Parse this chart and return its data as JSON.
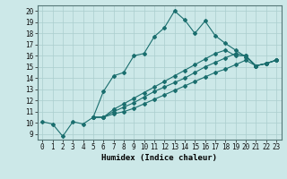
{
  "xlabel": "Humidex (Indice chaleur)",
  "bg_color": "#cce8e8",
  "line_color": "#1a6e6e",
  "grid_color": "#aacece",
  "xlim": [
    -0.5,
    23.5
  ],
  "ylim": [
    8.5,
    20.5
  ],
  "xticks": [
    0,
    1,
    2,
    3,
    4,
    5,
    6,
    7,
    8,
    9,
    10,
    11,
    12,
    13,
    14,
    15,
    16,
    17,
    18,
    19,
    20,
    21,
    22,
    23
  ],
  "yticks": [
    9,
    10,
    11,
    12,
    13,
    14,
    15,
    16,
    17,
    18,
    19,
    20
  ],
  "series": [
    {
      "x": [
        0,
        1,
        2,
        3,
        4,
        5,
        6,
        7,
        8,
        9,
        10,
        11,
        12,
        13,
        14,
        15,
        16,
        17,
        18,
        19,
        20,
        21,
        22,
        23
      ],
      "y": [
        10.1,
        9.9,
        8.8,
        10.1,
        9.9,
        10.5,
        12.8,
        14.2,
        14.5,
        16.0,
        16.2,
        17.7,
        18.5,
        20.0,
        19.2,
        18.0,
        19.1,
        17.8,
        17.1,
        16.5,
        15.9,
        15.1,
        15.3,
        15.6
      ]
    },
    {
      "x": [
        5,
        6,
        7,
        8,
        9,
        10,
        11,
        12,
        13,
        14,
        15,
        16,
        17,
        18,
        19,
        20,
        21,
        22,
        23
      ],
      "y": [
        10.5,
        10.5,
        10.8,
        11.0,
        11.3,
        11.7,
        12.1,
        12.5,
        12.9,
        13.3,
        13.7,
        14.1,
        14.5,
        14.8,
        15.2,
        15.6,
        15.1,
        15.3,
        15.6
      ]
    },
    {
      "x": [
        5,
        6,
        7,
        8,
        9,
        10,
        11,
        12,
        13,
        14,
        15,
        16,
        17,
        18,
        19,
        20,
        21,
        22,
        23
      ],
      "y": [
        10.5,
        10.5,
        11.0,
        11.4,
        11.8,
        12.3,
        12.8,
        13.2,
        13.6,
        14.0,
        14.5,
        15.0,
        15.4,
        15.8,
        16.2,
        16.0,
        15.1,
        15.3,
        15.6
      ]
    },
    {
      "x": [
        5,
        6,
        7,
        8,
        9,
        10,
        11,
        12,
        13,
        14,
        15,
        16,
        17,
        18,
        19,
        20,
        21,
        22,
        23
      ],
      "y": [
        10.5,
        10.5,
        11.2,
        11.7,
        12.2,
        12.7,
        13.2,
        13.7,
        14.2,
        14.7,
        15.2,
        15.7,
        16.2,
        16.5,
        16.0,
        16.0,
        15.1,
        15.3,
        15.6
      ]
    }
  ],
  "xlabel_fontsize": 6.5,
  "tick_fontsize": 5.5
}
